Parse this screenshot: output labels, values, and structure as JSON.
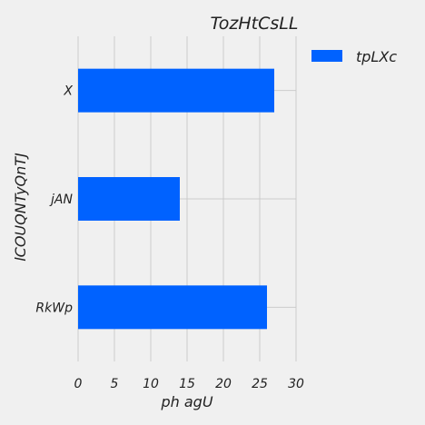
{
  "chart_data": {
    "type": "bar",
    "orientation": "horizontal",
    "title": "TozHtCsLL",
    "xlabel": "ph agU",
    "ylabel": "lCOUQNTyQnTJ",
    "categories": [
      "RkWp",
      "jAN",
      "X"
    ],
    "series": [
      {
        "name": "tpLXc",
        "values": [
          26,
          14,
          27
        ],
        "color": "#0062ff"
      }
    ],
    "xlim": [
      0,
      30
    ],
    "xticks": [
      "0",
      "5",
      "10",
      "15",
      "20",
      "25",
      "30"
    ],
    "grid": true,
    "legend": "top-right"
  }
}
